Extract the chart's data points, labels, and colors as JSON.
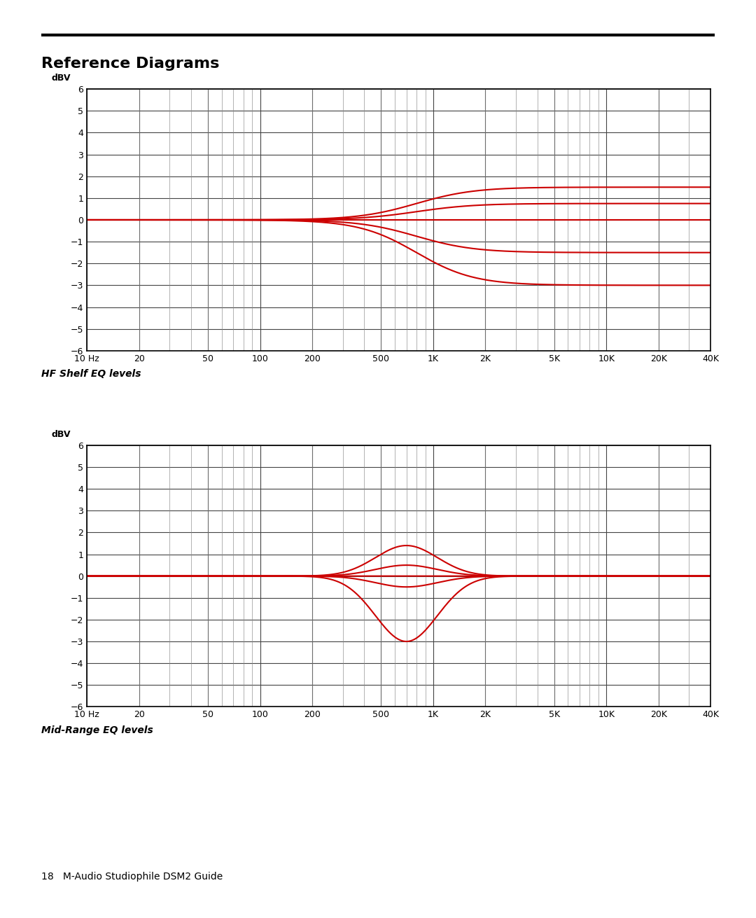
{
  "title": "Reference Diagrams",
  "page_label": "18   M-Audio Studiophile DSM2 Guide",
  "chart1_caption": "HF Shelf EQ levels",
  "chart2_caption": "Mid-Range EQ levels",
  "ylabel": "dBV",
  "ylim": [
    -6,
    6
  ],
  "yticks": [
    -6,
    -5,
    -4,
    -3,
    -2,
    -1,
    0,
    1,
    2,
    3,
    4,
    5,
    6
  ],
  "xlim_log": [
    10,
    40000
  ],
  "xtick_positions": [
    10,
    20,
    50,
    100,
    200,
    500,
    1000,
    2000,
    5000,
    10000,
    20000,
    40000
  ],
  "xtick_labels": [
    "10 Hz",
    "20",
    "50",
    "100",
    "200",
    "500",
    "1K",
    "2K",
    "5K",
    "10K",
    "20K",
    "40K"
  ],
  "line_color": "#cc0000",
  "line_width": 1.5,
  "grid_major_color": "#444444",
  "grid_minor_color": "#888888",
  "hf_shelf_gains": [
    1.5,
    0.75,
    0.0,
    -1.5,
    -3.0
  ],
  "hf_shelf_fc": 800,
  "hf_shelf_slope": 6.0,
  "mid_gains": [
    1.4,
    0.5,
    0.0,
    -0.5,
    -3.0
  ],
  "mid_fc": 700,
  "mid_q": 2.8
}
